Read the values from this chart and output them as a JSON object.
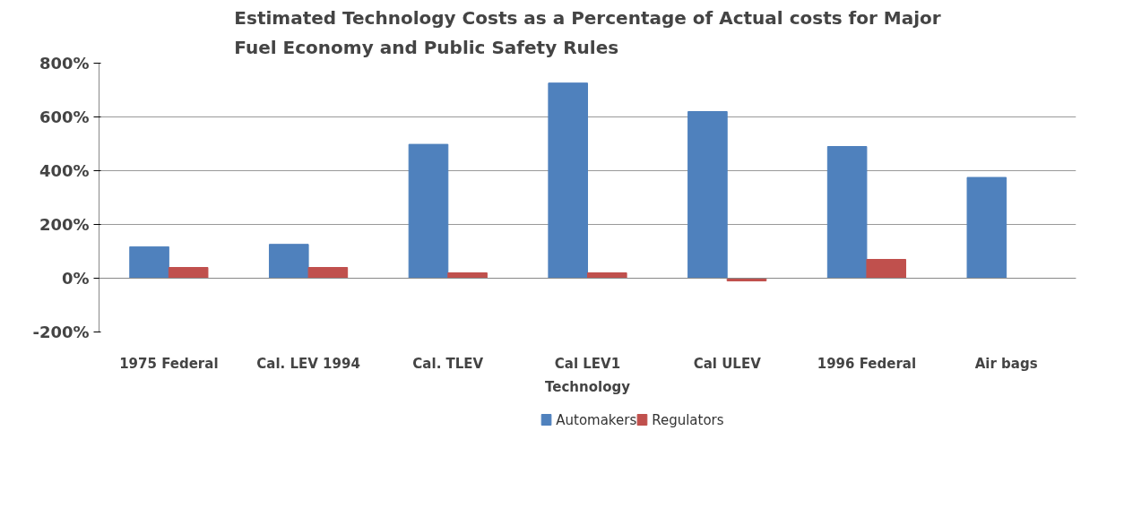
{
  "chart_data": {
    "type": "bar",
    "title": "Estimated Technology Costs as a Percentage of Actual costs for Major Fuel Economy and Public Safety Rules",
    "xlabel": "Technology",
    "categories": [
      "1975 Federal",
      "Cal. LEV 1994",
      "Cal. TLEV",
      "Cal LEV1",
      "Cal ULEV",
      "1996 Federal",
      "Air bags"
    ],
    "series": [
      {
        "name": "Automakers",
        "color": "#4f81bd",
        "values": [
          117,
          126,
          498,
          726,
          620,
          490,
          375
        ]
      },
      {
        "name": "Regulators",
        "color": "#c0504d",
        "values": [
          40,
          40,
          20,
          20,
          -10,
          70,
          null
        ]
      }
    ],
    "ylim": [
      -200,
      800
    ],
    "yticks": [
      {
        "value": -200,
        "label": "-200%"
      },
      {
        "value": 0,
        "label": "0%"
      },
      {
        "value": 200,
        "label": "200%"
      },
      {
        "value": 400,
        "label": "400%"
      },
      {
        "value": 600,
        "label": "600%"
      },
      {
        "value": 800,
        "label": "800%"
      }
    ],
    "grid": "y",
    "legend": "bottom"
  }
}
